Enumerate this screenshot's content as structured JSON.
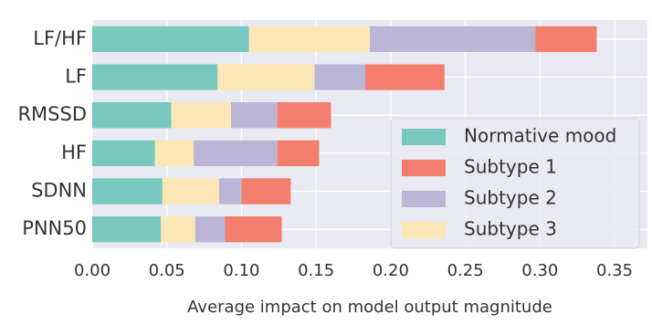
{
  "chart_data": {
    "type": "stacked-barh",
    "x_label": "Average impact on model output magnitude",
    "categories": [
      "LF/HF",
      "LF",
      "RMSSD",
      "HF",
      "SDNN",
      "PNN50"
    ],
    "series": [
      {
        "name": "Normative mood",
        "color": "#79c8c0",
        "values": [
          0.105,
          0.084,
          0.053,
          0.042,
          0.047,
          0.046
        ]
      },
      {
        "name": "Subtype 1",
        "color": "#f47e6e",
        "values": [
          0.041,
          0.053,
          0.036,
          0.028,
          0.033,
          0.038
        ]
      },
      {
        "name": "Subtype 2",
        "color": "#bcb6d6",
        "values": [
          0.111,
          0.034,
          0.031,
          0.056,
          0.015,
          0.02
        ]
      },
      {
        "name": "Subtype 3",
        "color": "#fce7b6",
        "values": [
          0.081,
          0.065,
          0.04,
          0.026,
          0.038,
          0.023
        ]
      }
    ],
    "xlim": [
      0,
      0.372
    ],
    "xticks": [
      {
        "value": 0,
        "label": "0.00"
      },
      0.05,
      {
        "value": 0.1,
        "label": "0.10"
      },
      0.15,
      {
        "value": 0.2,
        "label": "0.20"
      },
      0.25,
      {
        "value": 0.3,
        "label": "0.30"
      },
      0.35
    ],
    "grid": true,
    "legend": "lower right"
  }
}
